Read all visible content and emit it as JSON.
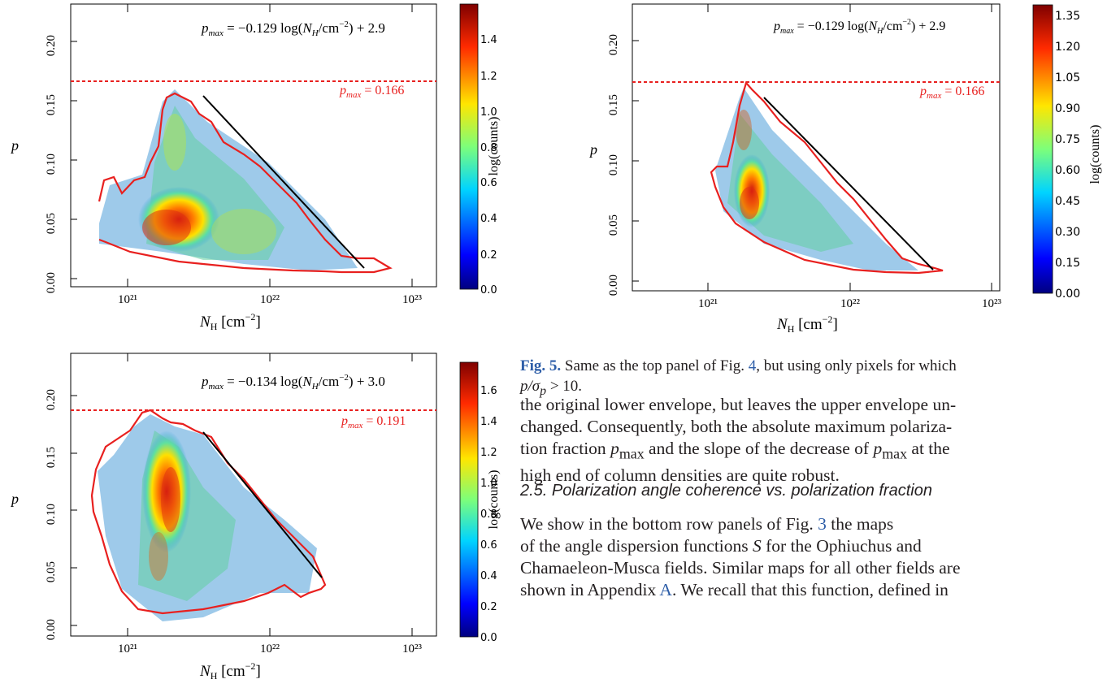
{
  "figures": [
    {
      "id": "top-left",
      "fit_equation": "p_max = −0.129 log(N_H/cm^−2) + 2.9",
      "fit_eq_parts": {
        "lhs": "p",
        "sub": "max",
        "eq": " = −0.129 log(",
        "nh": "N",
        "nhsub": "H",
        "unit": "/cm",
        "exp": "−2",
        "tail": ") + 2.9"
      },
      "pmax_label_parts": {
        "p": "p",
        "sub": "max",
        "val": " = 0.166"
      },
      "colorbar_label": "log(counts)",
      "colorbar_ticks": [
        "0.0",
        "0.2",
        "0.4",
        "0.6",
        "0.8",
        "1.0",
        "1.2",
        "1.4"
      ],
      "y_ticks": [
        "0.00",
        "0.05",
        "0.10",
        "0.15",
        "0.20"
      ],
      "x_ticks": [
        "10²¹",
        "10²²",
        "10²³"
      ],
      "x_label_parts": {
        "n": "N",
        "sub": "H",
        "unit": " [cm",
        "exp": "−2",
        "close": "]"
      },
      "y_label": "p"
    },
    {
      "id": "top-right",
      "fit_eq_parts": {
        "lhs": "p",
        "sub": "max",
        "eq": " = −0.129 log(",
        "nh": "N",
        "nhsub": "H",
        "unit": "/cm",
        "exp": "−2",
        "tail": ") + 2.9"
      },
      "pmax_label_parts": {
        "p": "p",
        "sub": "max",
        "val": " = 0.166"
      },
      "colorbar_label": "log(counts)",
      "colorbar_ticks": [
        "0.00",
        "0.15",
        "0.30",
        "0.45",
        "0.60",
        "0.75",
        "0.90",
        "1.05",
        "1.20",
        "1.35"
      ],
      "y_ticks": [
        "0.00",
        "0.05",
        "0.10",
        "0.15",
        "0.20"
      ],
      "x_ticks": [
        "10²¹",
        "10²²",
        "10²³"
      ],
      "x_label_parts": {
        "n": "N",
        "sub": "H",
        "unit": " [cm",
        "exp": "−2",
        "close": "]"
      },
      "y_label": "p"
    },
    {
      "id": "bottom-left",
      "fit_eq_parts": {
        "lhs": "p",
        "sub": "max",
        "eq": " = −0.134 log(",
        "nh": "N",
        "nhsub": "H",
        "unit": "/cm",
        "exp": "−2",
        "tail": ") + 3.0"
      },
      "pmax_label_parts": {
        "p": "p",
        "sub": "max",
        "val": " = 0.191"
      },
      "colorbar_label": "log(counts)",
      "colorbar_ticks": [
        "0.0",
        "0.2",
        "0.4",
        "0.6",
        "0.8",
        "1.0",
        "1.2",
        "1.4",
        "1.6"
      ],
      "y_ticks": [
        "0.00",
        "0.05",
        "0.10",
        "0.15",
        "0.20"
      ],
      "x_ticks": [
        "10²¹",
        "10²²",
        "10²³"
      ],
      "x_label_parts": {
        "n": "N",
        "sub": "H",
        "unit": " [cm",
        "exp": "−2",
        "close": "]"
      },
      "y_label": "p"
    }
  ],
  "caption": {
    "label": "Fig. 5.",
    "text_before_ref": " Same as the top panel of Fig. ",
    "ref": "4",
    "text_after_ref": ", but using only pixels for which",
    "line2": "p/σ",
    "line2_sub": "p",
    "line2_end": " > 10."
  },
  "paragraph1": {
    "l1": "the original lower envelope, but leaves the upper envelope un-",
    "l2": "changed. Consequently, both the absolute maximum polariza-",
    "l3a": "tion fraction ",
    "p": "p",
    "sub": "max",
    "l3b": " and the slope of the decrease of ",
    "l3c": " at the",
    "l4": "high end of column densities are quite robust."
  },
  "section_heading": "2.5. Polarization angle coherence vs. polarization fraction",
  "paragraph2": {
    "l1a": "We show in the bottom row panels of Fig. ",
    "l1ref": "3",
    "l1b": " the maps",
    "l2a": "of the angle dispersion functions ",
    "S": "S",
    "l2b": " for the Ophiuchus and",
    "l3": "Chamaeleon-Musca fields. Similar maps for all other fields are",
    "l4a": "shown in Appendix ",
    "l4ref": "A",
    "l4b": ". We recall that this function, defined in"
  }
}
